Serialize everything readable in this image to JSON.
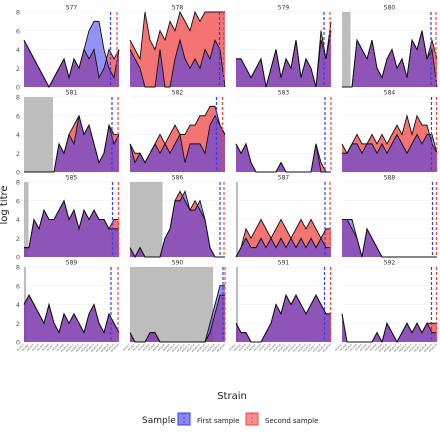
{
  "chart_data": {
    "type": "area",
    "xlabel": "Strain",
    "ylabel": "log titre",
    "ylim": [
      0,
      8
    ],
    "yticks": [
      0,
      2,
      4,
      6,
      8
    ],
    "n_strains": 20,
    "x_tick_labels": [
      "A/SA/1",
      "A/SA/2",
      "A/SA/3",
      "A/SA/4",
      "A/SA/5",
      "A/SA/6",
      "A/SA/7",
      "A/SA/8",
      "A/SA/9",
      "A/SA/10",
      "A/SA/11",
      "A/SA/12",
      "A/SA/13",
      "A/SA/14",
      "A/SA/15",
      "A/SA/16",
      "A/SA/17",
      "A/SA/18",
      "A/SA/19",
      "A/SA/20"
    ],
    "legend": {
      "title": "Sample",
      "position": "bottom",
      "items": [
        {
          "label": "First sample",
          "color": "#3b3bf0"
        },
        {
          "label": "Second sample",
          "color": "#f04545"
        }
      ]
    },
    "colors": {
      "first": "#3b3bf0",
      "second": "#f04545",
      "overlap": "#8e2454",
      "shade": "#bdbdbd",
      "grid": "#ebebeb"
    },
    "panels": [
      {
        "id": "577",
        "shade": null,
        "vline_first": 17.3,
        "vline_second": 18.6,
        "first": [
          5,
          4,
          3,
          2,
          1,
          0,
          1,
          2,
          3,
          1,
          3,
          2,
          4,
          6,
          7,
          7,
          4,
          2,
          1,
          4
        ],
        "second": [
          5,
          4,
          3,
          2,
          1,
          0,
          1,
          2,
          3,
          1,
          3,
          2,
          4,
          3,
          4,
          1,
          2,
          4,
          3,
          4
        ]
      },
      {
        "id": "578",
        "shade": null,
        "vline_first": 17.9,
        "vline_second": 18.7,
        "first": [
          4,
          3,
          2,
          0,
          0,
          0,
          4,
          0,
          0,
          3,
          5,
          3,
          2,
          3,
          2,
          4,
          3,
          5,
          4,
          0
        ],
        "second": [
          5,
          4,
          3,
          8,
          5,
          4,
          6,
          5,
          7,
          6,
          8,
          7,
          6,
          8,
          7,
          8,
          8,
          8,
          8,
          8
        ]
      },
      {
        "id": "579",
        "shade": null,
        "vline_first": 17.6,
        "vline_second": 18.8,
        "first": [
          3,
          3,
          2,
          1,
          2,
          3,
          0,
          2,
          4,
          1,
          3,
          2,
          5,
          1,
          3,
          2,
          0,
          5,
          3,
          6
        ],
        "second": [
          3,
          3,
          2,
          1,
          2,
          3,
          0,
          2,
          4,
          1,
          3,
          2,
          5,
          1,
          3,
          2,
          0,
          6,
          3,
          7
        ]
      },
      {
        "id": "580",
        "shade": [
          0,
          1.7
        ],
        "vline_first": 17.8,
        "vline_second": 18.8,
        "first": [
          0,
          0,
          0,
          5,
          4,
          3,
          5,
          2,
          1,
          3,
          4,
          2,
          3,
          1,
          5,
          4,
          6,
          3,
          4,
          0
        ],
        "second": [
          0,
          0,
          0,
          5,
          4,
          3,
          5,
          2,
          1,
          3,
          4,
          2,
          3,
          1,
          5,
          4,
          6,
          3,
          5,
          3
        ]
      },
      {
        "id": "581",
        "shade": [
          0,
          5.8
        ],
        "vline_first": 17.6,
        "vline_second": 18.8,
        "first": [
          0,
          0,
          0,
          0,
          0,
          0,
          0,
          3,
          2,
          4,
          3,
          6,
          4,
          5,
          3,
          1,
          2,
          5,
          3,
          4
        ],
        "second": [
          0,
          0,
          0,
          0,
          0,
          0,
          0,
          3,
          2,
          4,
          5,
          6,
          4,
          5,
          3,
          1,
          2,
          5,
          4,
          4
        ]
      },
      {
        "id": "582",
        "shade": null,
        "vline_first": 17.3,
        "vline_second": 18.5,
        "first": [
          3,
          1,
          2,
          1,
          2,
          3,
          2,
          3,
          2,
          3,
          4,
          1,
          3,
          3,
          3,
          2,
          5,
          6,
          5,
          4
        ],
        "second": [
          3,
          2,
          2,
          1,
          2,
          3,
          4,
          3,
          4,
          5,
          4,
          4,
          5,
          5,
          6,
          6,
          7,
          7,
          5,
          4
        ]
      },
      {
        "id": "583",
        "shade": null,
        "vline_first": 17.8,
        "vline_second": 19.0,
        "first": [
          3,
          2,
          3,
          1,
          0,
          0,
          0,
          0,
          0,
          1,
          0,
          0,
          0,
          0,
          0,
          0,
          3,
          0,
          0,
          0
        ],
        "second": [
          3,
          2,
          3,
          1,
          0,
          0,
          0,
          0,
          0,
          1,
          0,
          0,
          0,
          0,
          0,
          0,
          3,
          1,
          0,
          0
        ]
      },
      {
        "id": "584",
        "shade": null,
        "vline_first": 17.9,
        "vline_second": 18.9,
        "first": [
          2,
          2,
          3,
          3,
          2,
          3,
          3,
          2,
          3,
          2,
          3,
          4,
          3,
          2,
          3,
          4,
          3,
          4,
          4,
          2
        ],
        "second": [
          3,
          2,
          3,
          4,
          3,
          3,
          4,
          3,
          4,
          3,
          4,
          5,
          4,
          6,
          4,
          6,
          5,
          5,
          3,
          2
        ]
      },
      {
        "id": "585",
        "shade": [
          0,
          0.9
        ],
        "vline_first": 17.7,
        "vline_second": 18.9,
        "first": [
          1,
          1,
          4,
          3,
          5,
          4,
          4,
          5,
          6,
          4,
          5,
          3,
          5,
          4,
          5,
          4,
          4,
          3,
          3,
          3
        ],
        "second": [
          1,
          1,
          4,
          3,
          5,
          4,
          4,
          5,
          6,
          4,
          5,
          3,
          5,
          4,
          5,
          4,
          4,
          3,
          4,
          4
        ]
      },
      {
        "id": "586",
        "shade": [
          0,
          6.5
        ],
        "vline_first": 18.0,
        "vline_second": 18.8,
        "first": [
          1,
          0,
          1,
          0,
          0,
          0,
          0,
          2,
          3,
          6,
          6,
          7,
          5,
          5,
          6,
          4,
          1,
          0,
          0,
          0
        ],
        "second": [
          1,
          0,
          1,
          0,
          0,
          0,
          0,
          2,
          3,
          6,
          7,
          6,
          5,
          6,
          5,
          4,
          1,
          0,
          0,
          0
        ]
      },
      {
        "id": "587",
        "shade": [
          0,
          0.4
        ],
        "vline_first": 17.8,
        "vline_second": 18.8,
        "first": [
          0,
          1,
          2,
          1,
          1,
          2,
          1,
          2,
          1,
          2,
          1,
          2,
          1,
          2,
          1,
          2,
          1,
          2,
          1,
          1
        ],
        "second": [
          0,
          1,
          3,
          2,
          3,
          4,
          3,
          2,
          3,
          4,
          3,
          2,
          3,
          4,
          3,
          4,
          3,
          2,
          3,
          3
        ]
      },
      {
        "id": "588",
        "shade": null,
        "vline_first": 18.1,
        "vline_second": 18.9,
        "first": [
          4,
          4,
          4,
          2,
          0,
          3,
          2,
          1,
          0,
          0,
          0,
          0,
          0,
          0,
          0,
          0,
          0,
          0,
          0,
          0
        ],
        "second": [
          4,
          4,
          3,
          2,
          0,
          3,
          2,
          1,
          0,
          0,
          0,
          0,
          0,
          0,
          0,
          0,
          0,
          0,
          0,
          0
        ]
      },
      {
        "id": "589",
        "shade": [
          0,
          0.4
        ],
        "vline_first": 17.4,
        "vline_second": 18.8,
        "first": [
          4,
          5,
          4,
          3,
          2,
          4,
          2,
          1,
          3,
          2,
          3,
          2,
          1,
          3,
          4,
          2,
          1,
          3,
          2,
          1
        ],
        "second": [
          4,
          5,
          4,
          3,
          2,
          4,
          2,
          1,
          3,
          2,
          3,
          2,
          1,
          3,
          4,
          2,
          1,
          3,
          2,
          1
        ]
      },
      {
        "id": "590",
        "shade": [
          0,
          16.6
        ],
        "vline_first": 18.6,
        "vline_second": 19.0,
        "first": [
          1,
          0,
          0,
          0,
          1,
          1,
          0,
          0,
          0,
          0,
          0,
          0,
          0,
          0,
          0,
          0,
          2,
          4,
          6,
          6
        ],
        "second": [
          1,
          0,
          0,
          0,
          1,
          1,
          0,
          0,
          0,
          0,
          0,
          0,
          0,
          0,
          0,
          0,
          1,
          3,
          5,
          5
        ]
      },
      {
        "id": "591",
        "shade": [
          0,
          0.4
        ],
        "vline_first": 17.7,
        "vline_second": 18.9,
        "first": [
          2,
          1,
          1,
          0,
          0,
          0,
          1,
          2,
          4,
          3,
          5,
          4,
          5,
          4,
          3,
          4,
          5,
          4,
          3,
          3
        ],
        "second": [
          2,
          1,
          1,
          0,
          0,
          0,
          1,
          2,
          4,
          3,
          5,
          4,
          5,
          4,
          3,
          4,
          5,
          4,
          3,
          3
        ]
      },
      {
        "id": "592",
        "shade": null,
        "vline_first": 17.9,
        "vline_second": 18.9,
        "first": [
          3,
          0,
          0,
          0,
          0,
          0,
          0,
          1,
          0,
          2,
          1,
          0,
          1,
          2,
          1,
          2,
          1,
          2,
          1,
          1
        ],
        "second": [
          3,
          0,
          0,
          0,
          0,
          0,
          0,
          1,
          0,
          2,
          1,
          0,
          1,
          2,
          1,
          2,
          1,
          2,
          2,
          2
        ]
      }
    ]
  }
}
